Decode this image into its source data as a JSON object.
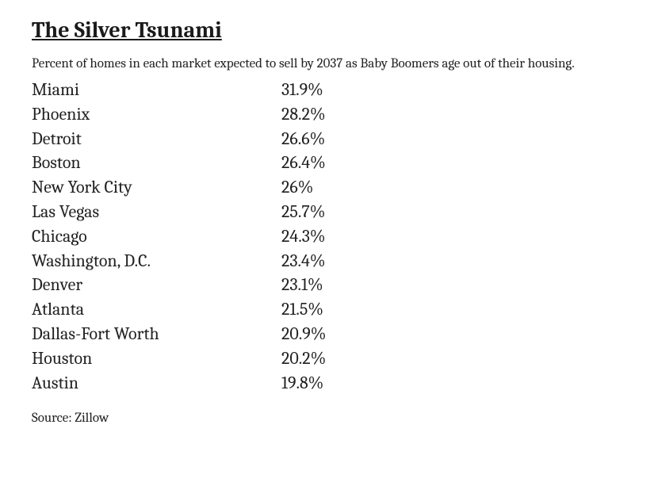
{
  "title": "The Silver Tsunami",
  "subtitle": "Percent of homes in each market expected to sell by 2037 as Baby Boomers age out of their housing.",
  "table": {
    "rows": [
      {
        "city": "Miami",
        "value": "31.9%"
      },
      {
        "city": "Phoenix",
        "value": "28.2%"
      },
      {
        "city": "Detroit",
        "value": "26.6%"
      },
      {
        "city": "Boston",
        "value": "26.4%"
      },
      {
        "city": "New York City",
        "value": "26%"
      },
      {
        "city": "Las Vegas",
        "value": "25.7%"
      },
      {
        "city": "Chicago",
        "value": "24.3%"
      },
      {
        "city": "Washington, D.C.",
        "value": "23.4%"
      },
      {
        "city": "Denver",
        "value": "23.1%"
      },
      {
        "city": "Atlanta",
        "value": "21.5%"
      },
      {
        "city": "Dallas-Fort Worth",
        "value": "20.9%"
      },
      {
        "city": "Houston",
        "value": "20.2%"
      },
      {
        "city": "Austin",
        "value": "19.8%"
      }
    ]
  },
  "source": "Source: Zillow",
  "styling": {
    "background_color": "#ffffff",
    "text_color": "#222222",
    "title_fontsize": 28,
    "subtitle_fontsize": 17,
    "row_fontsize": 22,
    "source_fontsize": 17,
    "font_family": "Cambria, Georgia, serif",
    "city_column_width": 315
  }
}
